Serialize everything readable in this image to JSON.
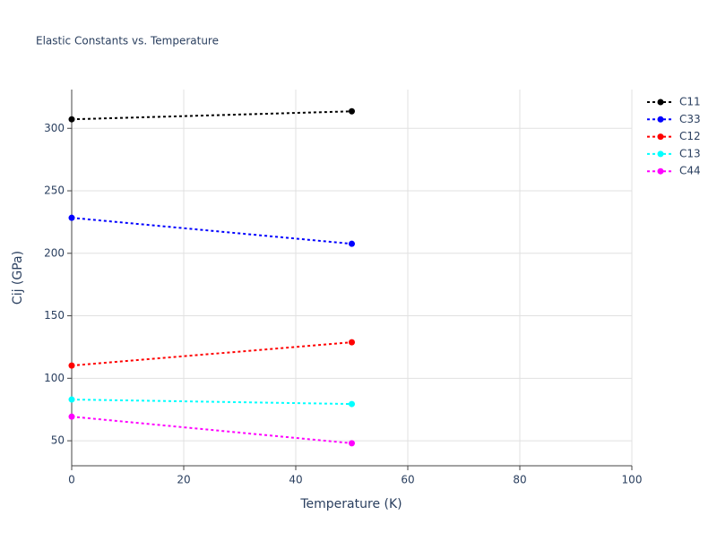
{
  "chart_data": {
    "type": "line",
    "title": "Elastic Constants vs. Temperature",
    "x_label": "Temperature (K)",
    "y_label": "Cij (GPa)",
    "x": [
      0,
      50
    ],
    "series": [
      {
        "name": "C11",
        "color": "#000000",
        "values": [
          307.2,
          313.6
        ]
      },
      {
        "name": "C33",
        "color": "#0000ff",
        "values": [
          228.4,
          207.6
        ]
      },
      {
        "name": "C12",
        "color": "#ff0000",
        "values": [
          110.2,
          128.8
        ]
      },
      {
        "name": "C13",
        "color": "#00ffff",
        "values": [
          83,
          79.4
        ]
      },
      {
        "name": "C44",
        "color": "#ff00ff",
        "values": [
          69.3,
          48
        ]
      }
    ],
    "xlim": [
      0,
      100
    ],
    "xticks": [
      0,
      20,
      40,
      60,
      80,
      100
    ],
    "ylim": [
      30,
      331
    ],
    "yticks": [
      50,
      100,
      150,
      200,
      250,
      300
    ],
    "grid": true,
    "legend": "right"
  }
}
